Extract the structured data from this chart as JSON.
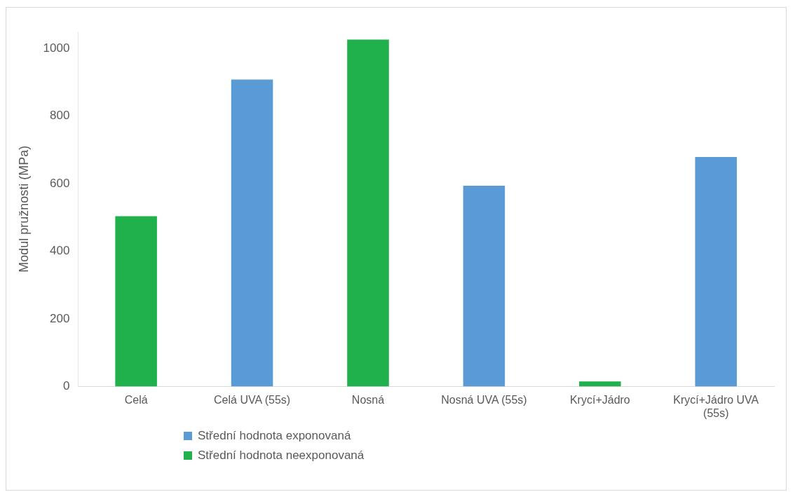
{
  "chart_data": {
    "type": "bar",
    "ylabel": "Modul pružnosti (MPa)",
    "categories": [
      "Celá",
      "Celá UVA (55s)",
      "Nosná",
      "Nosná UVA (55s)",
      "Krycí+Jádro",
      "Krycí+Jádro UVA (55s)"
    ],
    "series": [
      {
        "name": "Střední hodnota exponovaná",
        "color": "#5b9bd5",
        "values": [
          null,
          908,
          null,
          594,
          null,
          679
        ]
      },
      {
        "name": "Střední hodnota neexponovaná",
        "color": "#21b14c",
        "values": [
          504,
          null,
          1026,
          null,
          15,
          null
        ]
      }
    ],
    "ylim": [
      0,
      1050
    ],
    "yticks": [
      0,
      200,
      400,
      600,
      800,
      1000
    ],
    "grid": false,
    "legend": "bottom left"
  }
}
